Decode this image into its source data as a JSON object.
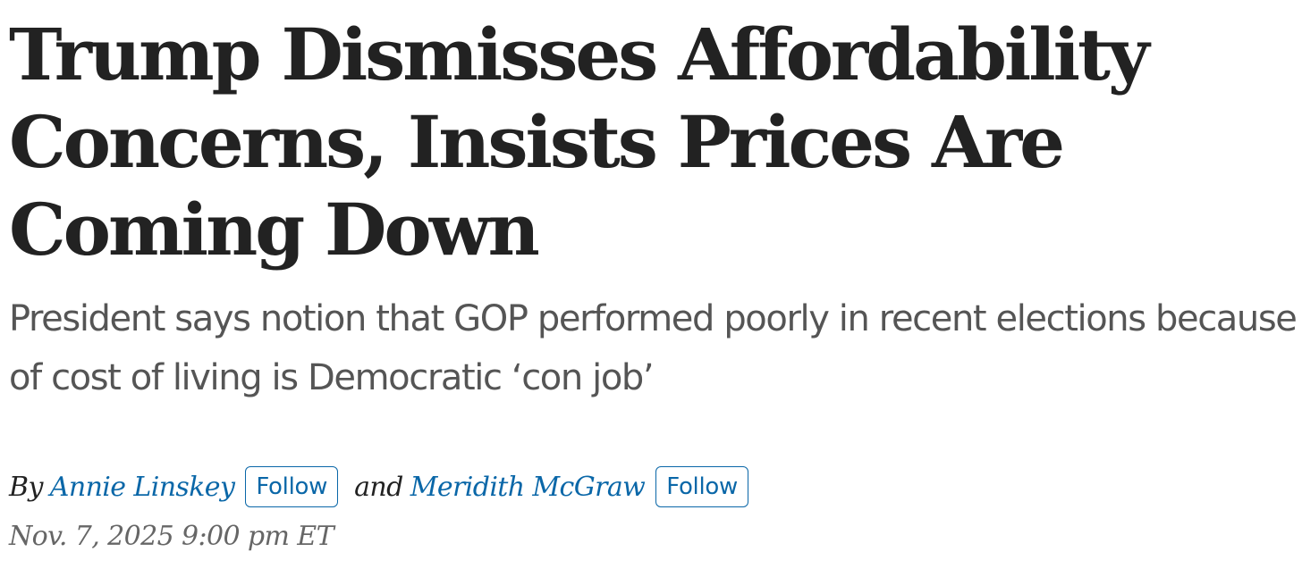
{
  "article": {
    "headline": "Trump Dismisses Affordability Concerns, Insists Prices Are Coming Down",
    "dek": "President says notion that GOP performed poorly in recent elections because of cost of living is Democratic ‘con job’",
    "byline": {
      "prefix": "By",
      "authors": [
        {
          "name": "Annie Linskey",
          "follow_label": "Follow"
        },
        {
          "name": "Meridith McGraw",
          "follow_label": "Follow"
        }
      ],
      "conjunction": "and"
    },
    "timestamp": "Nov. 7, 2025 9:00 pm ET"
  },
  "colors": {
    "headline": "#222222",
    "dek": "#555555",
    "link": "#0a67a8",
    "timestamp": "#666666"
  }
}
